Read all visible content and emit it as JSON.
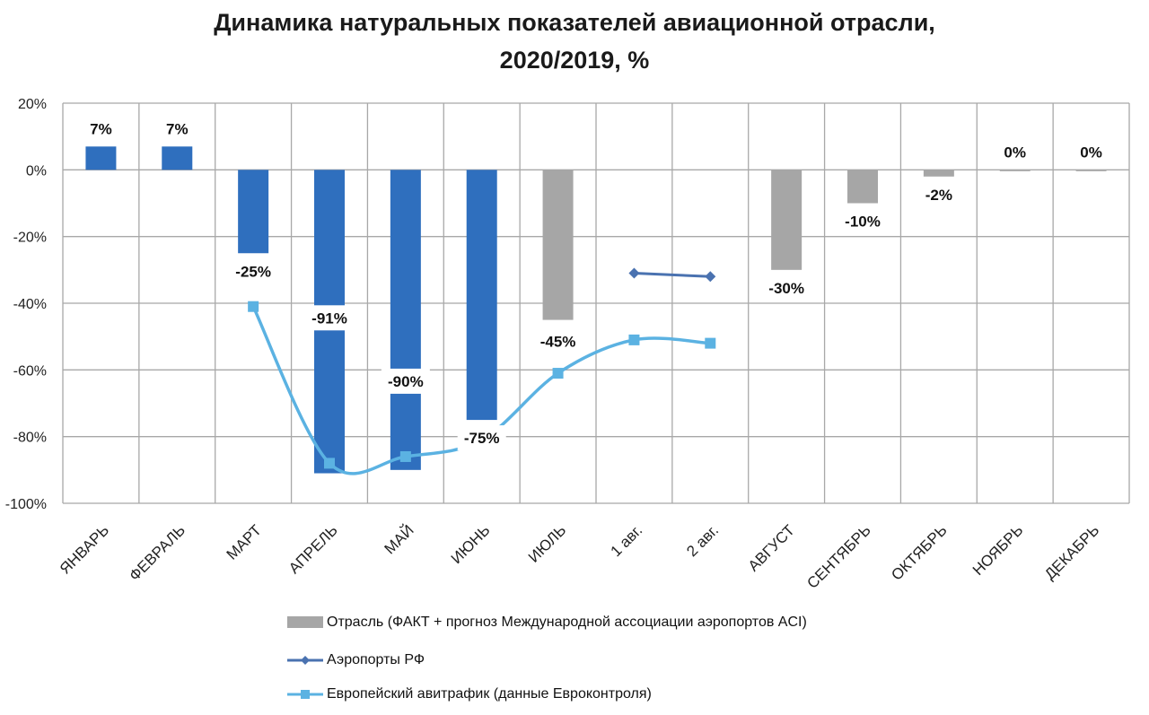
{
  "title_line1": "Динамика натуральных показателей авиационной отрасли,",
  "title_line2": "2020/2019, %",
  "chart_data": {
    "type": "bar",
    "categories": [
      "ЯНВАРЬ",
      "ФЕВРАЛЬ",
      "МАРТ",
      "АПРЕЛЬ",
      "МАЙ",
      "ИЮНЬ",
      "ИЮЛЬ",
      "1 авг.",
      "2 авг.",
      "АВГУСТ",
      "СЕНТЯБРЬ",
      "ОКТЯБРЬ",
      "НОЯБРЬ",
      "ДЕКАБРЬ"
    ],
    "ylim": [
      -100,
      20
    ],
    "yticks": [
      20,
      0,
      -20,
      -40,
      -60,
      -80,
      -100
    ],
    "ytick_labels": [
      "20%",
      "0%",
      "-20%",
      "-40%",
      "-60%",
      "-80%",
      "-100%"
    ],
    "grid": true,
    "bars": [
      {
        "value": 7,
        "label": "7%",
        "kind": "fact"
      },
      {
        "value": 7,
        "label": "7%",
        "kind": "fact"
      },
      {
        "value": -25,
        "label": "-25%",
        "kind": "fact"
      },
      {
        "value": -91,
        "label": "-91%",
        "kind": "fact"
      },
      {
        "value": -90,
        "label": "-90%",
        "kind": "fact"
      },
      {
        "value": -75,
        "label": "-75%",
        "kind": "fact"
      },
      {
        "value": -45,
        "label": "-45%",
        "kind": "forecast"
      },
      null,
      null,
      {
        "value": -30,
        "label": "-30%",
        "kind": "forecast"
      },
      {
        "value": -10,
        "label": "-10%",
        "kind": "forecast"
      },
      {
        "value": -2,
        "label": "-2%",
        "kind": "forecast"
      },
      {
        "value": 0,
        "label": "0%",
        "kind": "forecast"
      },
      {
        "value": 0,
        "label": "0%",
        "kind": "forecast"
      }
    ],
    "series": [
      {
        "name": "Аэропорты РФ",
        "values": [
          null,
          null,
          null,
          null,
          null,
          null,
          null,
          -31,
          -32,
          null,
          null,
          null,
          null,
          null
        ]
      },
      {
        "name": "Европейский авитрафик (данные Евроконтроля)",
        "values": [
          null,
          null,
          -41,
          -88,
          -86,
          -81,
          -61,
          -51,
          -52,
          null,
          null,
          null,
          null,
          null
        ]
      }
    ],
    "legend_position": "bottom",
    "legend": [
      {
        "label": "Отрасль (ФАКТ + прогноз Международной ассоциации аэропортов ACI)",
        "kind": "bar-gray"
      },
      {
        "label": "Аэропорты РФ",
        "kind": "line-diamond"
      },
      {
        "label": "Европейский авитрафик (данные Евроконтроля)",
        "kind": "line-square"
      }
    ]
  },
  "colors": {
    "fact": "#2f6fbe",
    "forecast": "#a6a6a6",
    "airports": "#4a72b0",
    "euro": "#5bb2e2",
    "grid": "#a8a8a8",
    "label_bg": "#ffffff"
  }
}
